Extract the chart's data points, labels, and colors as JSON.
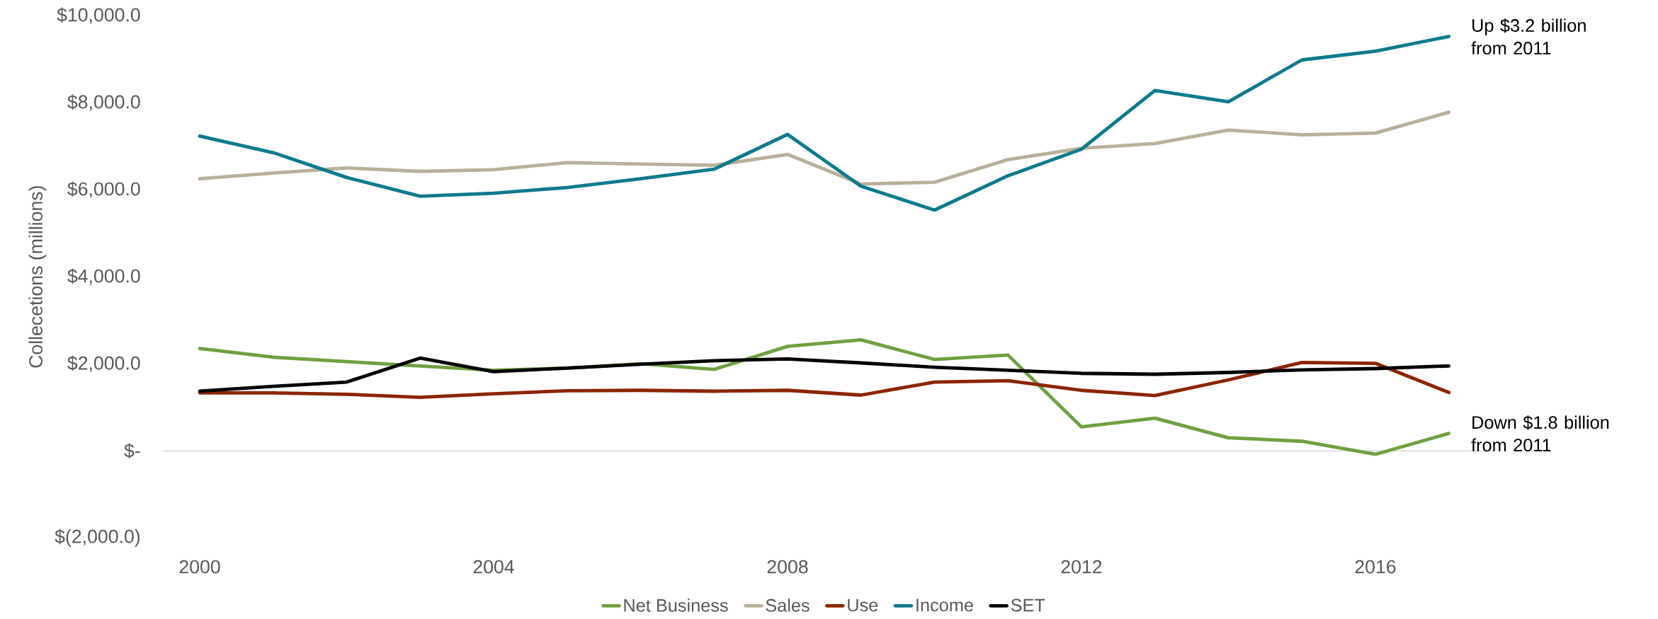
{
  "chart_data": {
    "type": "line",
    "ylabel": "Collecetions (millions)",
    "x": [
      2000,
      2001,
      2002,
      2003,
      2004,
      2005,
      2006,
      2007,
      2008,
      2009,
      2010,
      2011,
      2012,
      2013,
      2014,
      2015,
      2016,
      2017
    ],
    "series": [
      {
        "name": "Net Business",
        "color": "#70a040",
        "values": [
          2350,
          2150,
          2050,
          1950,
          1850,
          1900,
          2000,
          1870,
          2400,
          2550,
          2100,
          2200,
          550,
          750,
          300,
          220,
          -80,
          400
        ]
      },
      {
        "name": "Sales",
        "color": "#b8b09a",
        "values": [
          6250,
          6380,
          6500,
          6420,
          6460,
          6620,
          6590,
          6560,
          6810,
          6130,
          6170,
          6690,
          6950,
          7060,
          7370,
          7260,
          7300,
          7780
        ]
      },
      {
        "name": "Use",
        "color": "#8b2500",
        "values": [
          1330,
          1330,
          1300,
          1230,
          1310,
          1380,
          1390,
          1370,
          1390,
          1280,
          1580,
          1610,
          1390,
          1270,
          1630,
          2030,
          2010,
          1340
        ]
      },
      {
        "name": "Income",
        "color": "#0d7a8c",
        "values": [
          7230,
          6850,
          6280,
          5850,
          5920,
          6050,
          6250,
          6470,
          7270,
          6080,
          5530,
          6320,
          6930,
          8280,
          8020,
          8980,
          9180,
          9520
        ]
      },
      {
        "name": "SET",
        "color": "#000000",
        "values": [
          1370,
          1480,
          1580,
          2130,
          1820,
          1900,
          1990,
          2070,
          2110,
          2020,
          1920,
          1850,
          1780,
          1760,
          1800,
          1860,
          1890,
          1950
        ]
      }
    ],
    "xlim": [
      1999.5,
      2017.5
    ],
    "xticks": [
      2000,
      2004,
      2008,
      2012,
      2016
    ],
    "ylim": [
      -2000,
      10000
    ],
    "yticks": [
      {
        "value": -2000,
        "label": "$(2,000.0)"
      },
      {
        "value": 0,
        "label": "$-"
      },
      {
        "value": 2000,
        "label": "$2,000.0"
      },
      {
        "value": 4000,
        "label": "$4,000.0"
      },
      {
        "value": 6000,
        "label": "$6,000.0"
      },
      {
        "value": 8000,
        "label": "$8,000.0"
      },
      {
        "value": 10000,
        "label": "$10,000.0"
      }
    ],
    "annotations": [
      {
        "text": "Up $3.2 billion from 2011",
        "x": 2017,
        "y": 9520
      },
      {
        "text": "Down $1.8 billion from 2011",
        "x": 2017,
        "y": 400
      }
    ],
    "ref_lines": [
      {
        "axis": "y",
        "value": 0,
        "color": "#d9d9d9"
      }
    ],
    "legend": "bottom",
    "grid": false,
    "marker": "none",
    "line_style": "solid"
  }
}
